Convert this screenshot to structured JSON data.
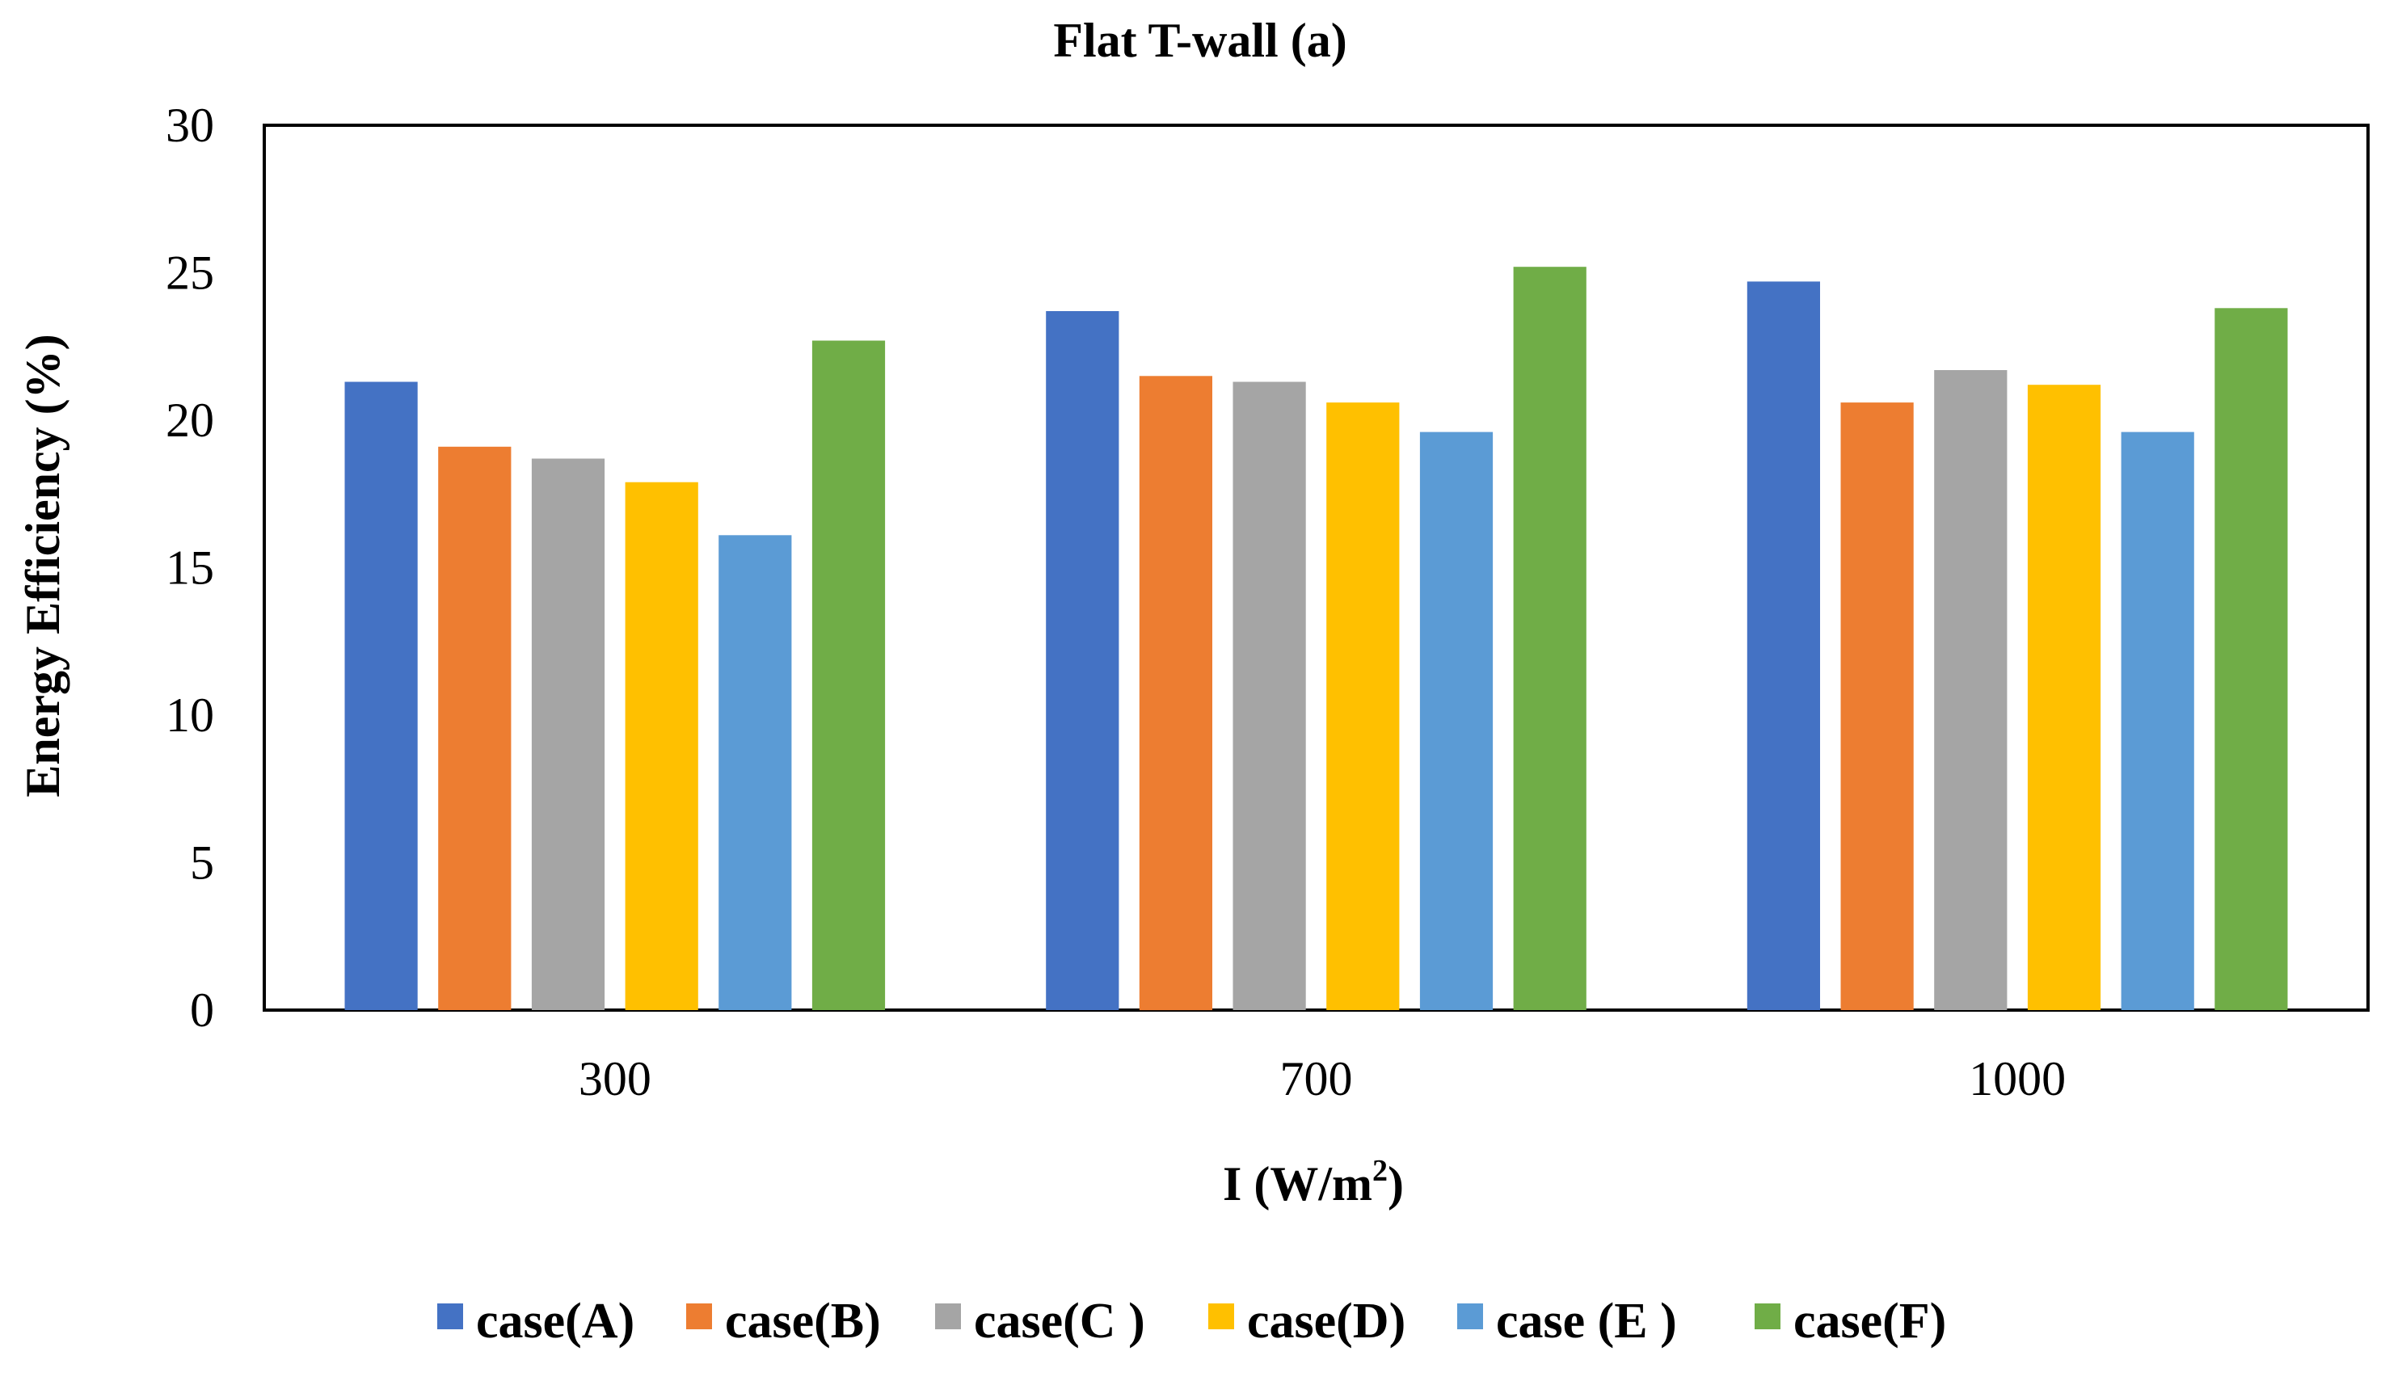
{
  "chart_data": {
    "type": "bar",
    "title": "Flat T-wall (a)",
    "xlabel_main": "I (W/m",
    "xlabel_sup": "2",
    "xlabel_close": ")",
    "ylabel": "Energy Efficiency (%)",
    "ylim": [
      0,
      30
    ],
    "yticks": [
      "0",
      "5",
      "10",
      "15",
      "20",
      "25",
      "30"
    ],
    "grid": false,
    "legend_position": "bottom",
    "categories": [
      "300",
      "700",
      "1000"
    ],
    "series": [
      {
        "name": "case(A)",
        "color": "#4472C4",
        "values": [
          21.3,
          23.7,
          24.7
        ]
      },
      {
        "name": "case(B)",
        "color": "#ED7D31",
        "values": [
          19.1,
          21.5,
          20.6
        ]
      },
      {
        "name": "case(C )",
        "color": "#A5A5A5",
        "values": [
          18.7,
          21.3,
          21.7
        ]
      },
      {
        "name": "case(D)",
        "color": "#FFC000",
        "values": [
          17.9,
          20.6,
          21.2
        ]
      },
      {
        "name": "case (E )",
        "color": "#5B9BD5",
        "values": [
          16.1,
          19.6,
          19.6
        ]
      },
      {
        "name": "case(F)",
        "color": "#70AD47",
        "values": [
          22.7,
          25.2,
          23.8
        ]
      }
    ]
  }
}
